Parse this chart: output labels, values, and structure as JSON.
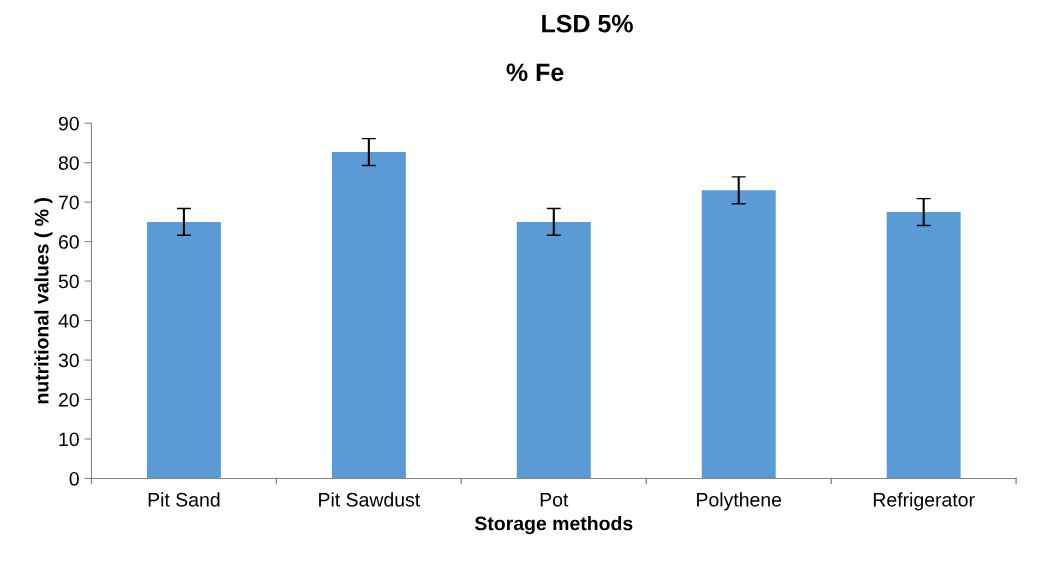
{
  "chart_data": {
    "type": "bar",
    "title": "LSD 5%",
    "subtitle": "% Fe",
    "xlabel": "Storage methods",
    "ylabel": "nutritional values ( % )",
    "categories": [
      "Pit Sand",
      "Pit Sawdust",
      "Pot",
      "Polythene",
      "Refrigerator"
    ],
    "values": [
      65,
      82.7,
      65,
      73,
      67.5
    ],
    "errors": [
      3.4,
      3.4,
      3.4,
      3.4,
      3.4
    ],
    "color": "#5b9bd5",
    "ylim": [
      0,
      90
    ],
    "yticks": [
      0,
      10,
      20,
      30,
      40,
      50,
      60,
      70,
      80,
      90
    ],
    "grid": false,
    "legend": false
  }
}
